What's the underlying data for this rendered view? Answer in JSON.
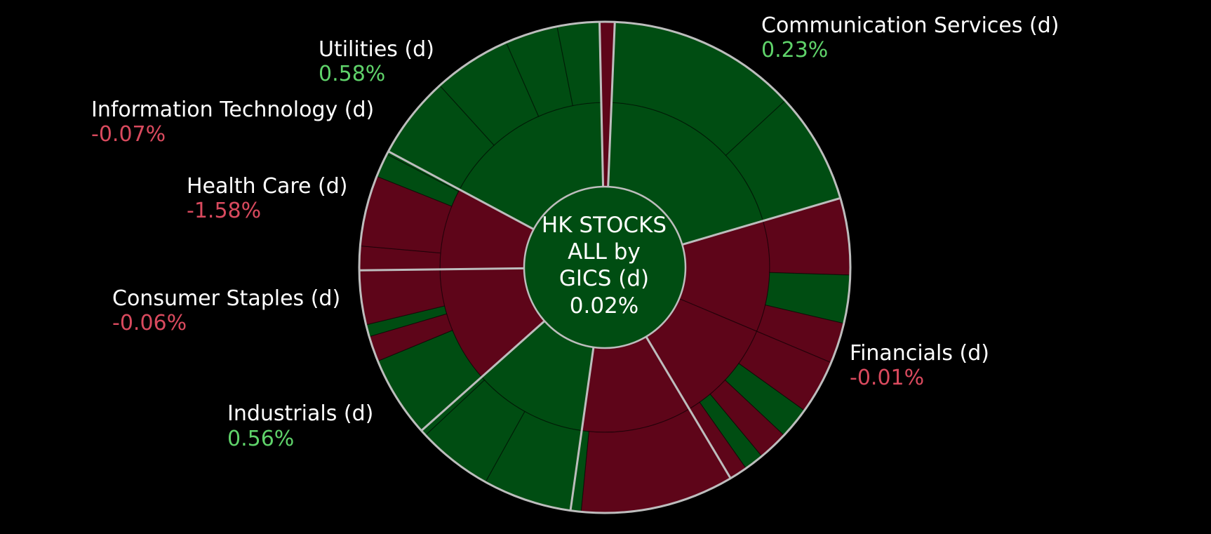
{
  "colors": {
    "background": "#000000",
    "positive_fill": "#004d12",
    "negative_fill": "#5e0519",
    "positive_text": "#5fd36a",
    "negative_text": "#d94a5e",
    "separator": "#bdbdbd",
    "center_fill": "#004d12"
  },
  "chart_data": {
    "type": "sunburst",
    "center": {
      "lines": [
        "HK STOCKS",
        "ALL by",
        "GICS (d)"
      ],
      "value": "0.02%",
      "change": 0.02
    },
    "sectors": [
      {
        "name": "Communication Services (d)",
        "value_label": "0.23%",
        "change": 0.23,
        "share": 20.0,
        "children": [
          {
            "share": 20.0,
            "change": 0.25,
            "leaves": [
              {
                "share": 12.6,
                "change": 0.3
              },
              {
                "share": 7.4,
                "change": 0.1
              }
            ]
          }
        ]
      },
      {
        "name": "Financials (d)",
        "value_label": "-0.01%",
        "change": -0.01,
        "share": 21.2,
        "children": [
          {
            "share": 11.0,
            "change": -0.4,
            "leaves": [
              {
                "share": 5.1,
                "change": -0.3
              },
              {
                "share": 3.2,
                "change": 0.4
              },
              {
                "share": 2.7,
                "change": -0.2
              }
            ]
          },
          {
            "share": 10.2,
            "change": -0.3,
            "leaves": [
              {
                "share": 3.6,
                "change": -0.2
              },
              {
                "share": 2.1,
                "change": 0.3
              },
              {
                "share": 2.0,
                "change": -0.4
              },
              {
                "share": 1.3,
                "change": 0.2
              },
              {
                "share": 1.2,
                "change": -0.1
              }
            ]
          }
        ]
      },
      {
        "name": "Industrials (d)",
        "value_label": "0.56%",
        "change": 0.56,
        "share": 10.9,
        "children": [
          {
            "share": 10.9,
            "change": -0.3,
            "leaves": [
              {
                "share": 10.2,
                "change": -0.3
              },
              {
                "share": 0.7,
                "change": 0.2
              }
            ]
          }
        ]
      },
      {
        "name": "Consumer Staples (d)",
        "value_label": "-0.06%",
        "change": -0.06,
        "share": 11.3,
        "children": [
          {
            "share": 11.3,
            "change": 0.4,
            "leaves": [
              {
                "share": 5.9,
                "change": 0.4
              },
              {
                "share": 5.0,
                "change": 0.3
              },
              {
                "share": 0.4,
                "change": 0.2
              }
            ]
          }
        ]
      },
      {
        "name": "Health Care (d)",
        "value_label": "-1.58%",
        "change": -1.58,
        "share": 11.5,
        "children": [
          {
            "share": 11.5,
            "change": -1.6,
            "leaves": [
              {
                "share": 5.4,
                "change": 0.3
              },
              {
                "share": 1.7,
                "change": -1.2
              },
              {
                "share": 0.8,
                "change": 0.2
              },
              {
                "share": 3.6,
                "change": -1.6
              }
            ]
          }
        ]
      },
      {
        "name": "Information Technology (d)",
        "value_label": "-0.07%",
        "change": -0.07,
        "share": 8.1,
        "children": [
          {
            "share": 8.1,
            "change": -0.5,
            "leaves": [
              {
                "share": 1.6,
                "change": -0.6
              },
              {
                "share": 4.7,
                "change": -0.4
              },
              {
                "share": 1.6,
                "change": 0.3
              },
              {
                "share": 0.2,
                "change": 0.1
              }
            ]
          }
        ]
      },
      {
        "name": "Utilities (d)",
        "value_label": "0.58%",
        "change": 0.58,
        "share": 17.0,
        "children": [
          {
            "share": 17.0,
            "change": 0.6,
            "leaves": [
              {
                "share": 5.5,
                "change": 0.5
              },
              {
                "share": 5.2,
                "change": 0.6
              },
              {
                "share": 3.5,
                "change": 0.4
              },
              {
                "share": 2.8,
                "change": 0.3
              }
            ]
          }
        ]
      }
    ],
    "trailing_leaf": {
      "share": 1.0,
      "change": -0.5
    }
  }
}
